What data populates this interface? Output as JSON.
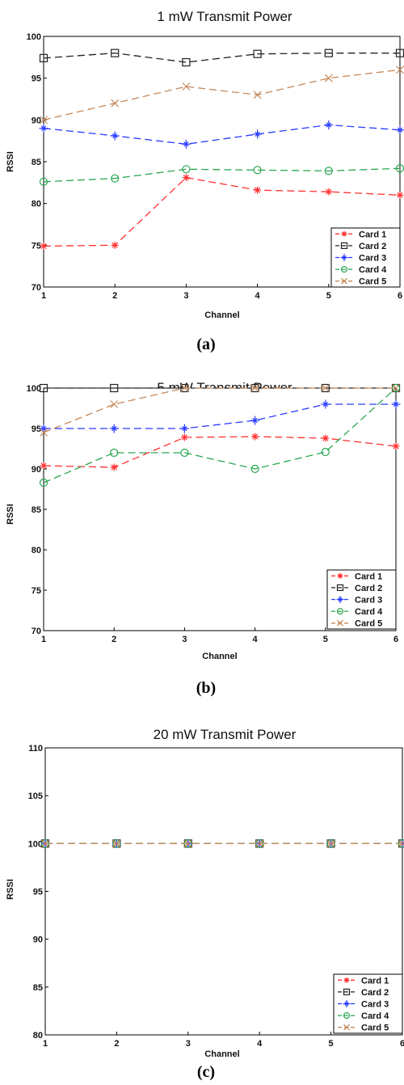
{
  "chart_data": [
    {
      "type": "line",
      "title": "1 mW Transmit Power",
      "caption": "(a)",
      "xlabel": "Channel",
      "ylabel": "RSSI",
      "xlim": [
        1,
        6
      ],
      "ylim": [
        70,
        100
      ],
      "xticks": [
        "1",
        "2",
        "3",
        "4",
        "5",
        "6"
      ],
      "yticks": [
        "70",
        "75",
        "80",
        "85",
        "90",
        "95",
        "100"
      ],
      "grid": false,
      "legend": "bottom-right",
      "x": [
        1,
        2,
        3,
        4,
        5,
        6
      ],
      "series": [
        {
          "name": "Card 1",
          "color": "#ff3030",
          "marker": "star",
          "values": [
            74.9,
            75.0,
            83.1,
            81.6,
            81.4,
            81.0
          ]
        },
        {
          "name": "Card 2",
          "color": "#222222",
          "marker": "square",
          "values": [
            97.4,
            98.0,
            96.9,
            97.9,
            98.0,
            98.0
          ]
        },
        {
          "name": "Card 3",
          "color": "#2a3cff",
          "marker": "plus",
          "values": [
            89.0,
            88.1,
            87.1,
            88.3,
            89.4,
            88.8
          ]
        },
        {
          "name": "Card 4",
          "color": "#27a64f",
          "marker": "circle",
          "values": [
            82.6,
            83.0,
            84.1,
            84.0,
            83.9,
            84.2
          ]
        },
        {
          "name": "Card 5",
          "color": "#c4885a",
          "marker": "x",
          "values": [
            90.0,
            92.0,
            94.0,
            93.0,
            95.0,
            96.0
          ]
        }
      ]
    },
    {
      "type": "line",
      "title": "5 mW Transmit Power",
      "caption": "(b)",
      "xlabel": "Channel",
      "ylabel": "RSSI",
      "xlim": [
        1,
        6
      ],
      "ylim": [
        70,
        100
      ],
      "xticks": [
        "1",
        "2",
        "3",
        "4",
        "5",
        "6"
      ],
      "yticks": [
        "70",
        "75",
        "80",
        "85",
        "90",
        "95",
        "100"
      ],
      "grid": false,
      "legend": "bottom-right",
      "x": [
        1,
        2,
        3,
        4,
        5,
        6
      ],
      "series": [
        {
          "name": "Card 1",
          "color": "#ff3030",
          "marker": "star",
          "values": [
            90.4,
            90.2,
            93.9,
            94.0,
            93.8,
            92.8
          ]
        },
        {
          "name": "Card 2",
          "color": "#222222",
          "marker": "square",
          "values": [
            100,
            100,
            100,
            100,
            100,
            100
          ]
        },
        {
          "name": "Card 3",
          "color": "#2a3cff",
          "marker": "plus",
          "values": [
            95.0,
            95.0,
            95.0,
            96.0,
            98.0,
            98.0
          ]
        },
        {
          "name": "Card 4",
          "color": "#27a64f",
          "marker": "circle",
          "values": [
            88.3,
            92.0,
            92.0,
            90.0,
            92.1,
            100.0
          ]
        },
        {
          "name": "Card 5",
          "color": "#c4885a",
          "marker": "x",
          "values": [
            94.5,
            98.0,
            100,
            100,
            100,
            100
          ]
        }
      ]
    },
    {
      "type": "line",
      "title": "20 mW Transmit Power",
      "caption": "(c)",
      "xlabel": "Channel",
      "ylabel": "RSSI",
      "xlim": [
        1,
        6
      ],
      "ylim": [
        80,
        110
      ],
      "xticks": [
        "1",
        "2",
        "3",
        "4",
        "5",
        "6"
      ],
      "yticks": [
        "80",
        "85",
        "90",
        "95",
        "100",
        "105",
        "110"
      ],
      "grid": false,
      "legend": "bottom-right",
      "x": [
        1,
        2,
        3,
        4,
        5,
        6
      ],
      "series": [
        {
          "name": "Card 1",
          "color": "#ff3030",
          "marker": "star",
          "values": [
            100,
            100,
            100,
            100,
            100,
            100
          ]
        },
        {
          "name": "Card 2",
          "color": "#222222",
          "marker": "square",
          "values": [
            100,
            100,
            100,
            100,
            100,
            100
          ]
        },
        {
          "name": "Card 3",
          "color": "#2a3cff",
          "marker": "plus",
          "values": [
            100,
            100,
            100,
            100,
            100,
            100
          ]
        },
        {
          "name": "Card 4",
          "color": "#27a64f",
          "marker": "circle",
          "values": [
            100,
            100,
            100,
            100,
            100,
            100
          ]
        },
        {
          "name": "Card 5",
          "color": "#c4885a",
          "marker": "x",
          "values": [
            100,
            100,
            100,
            100,
            100,
            100
          ]
        }
      ]
    }
  ]
}
